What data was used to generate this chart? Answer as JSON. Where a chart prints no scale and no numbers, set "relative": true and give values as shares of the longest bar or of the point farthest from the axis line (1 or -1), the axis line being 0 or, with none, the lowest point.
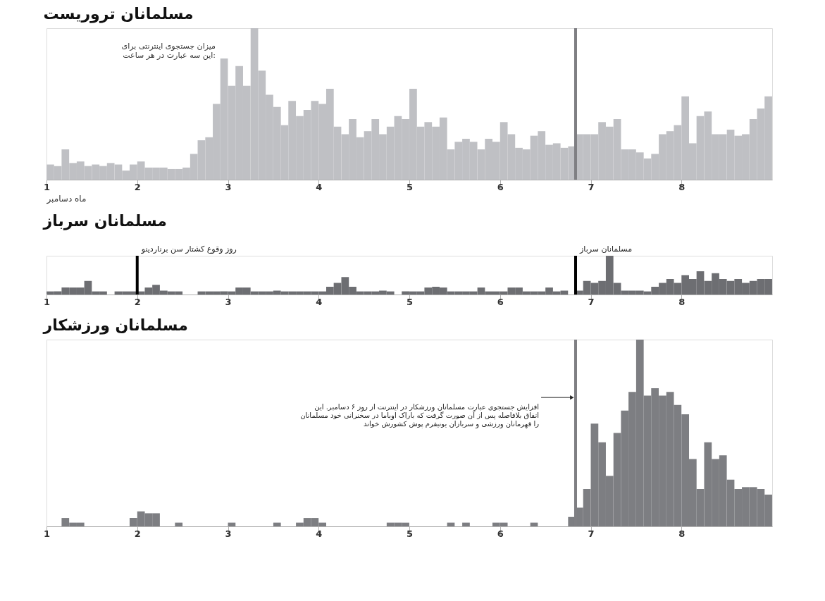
{
  "chart_data": [
    {
      "type": "bar",
      "title": "مسلمانان تروریست",
      "xlabel": "ماه دسامبر",
      "relative": true,
      "color": "#bfc0c4",
      "grid": false,
      "annotations": [
        "میزان جستجوی اینترنتی برای\nاین سه عبارت در هر ساعت:"
      ],
      "xlim": [
        1,
        9
      ],
      "xticks": [
        1,
        2,
        3,
        4,
        5,
        6,
        7,
        8
      ],
      "ref_lines": [
        {
          "axis": "x",
          "value": 6.833,
          "color": "#7f7f83"
        }
      ],
      "x": [
        1.042,
        1.125,
        1.208,
        1.292,
        1.375,
        1.458,
        1.542,
        1.625,
        1.708,
        1.792,
        1.875,
        1.958,
        2.042,
        2.125,
        2.208,
        2.292,
        2.375,
        2.458,
        2.542,
        2.625,
        2.708,
        2.792,
        2.875,
        2.958,
        3.042,
        3.125,
        3.208,
        3.292,
        3.375,
        3.458,
        3.542,
        3.625,
        3.708,
        3.792,
        3.875,
        3.958,
        4.042,
        4.125,
        4.208,
        4.292,
        4.375,
        4.458,
        4.542,
        4.625,
        4.708,
        4.792,
        4.875,
        4.958,
        5.042,
        5.125,
        5.208,
        5.292,
        5.375,
        5.458,
        5.542,
        5.625,
        5.708,
        5.792,
        5.875,
        5.958,
        6.042,
        6.125,
        6.208,
        6.292,
        6.375,
        6.458,
        6.542,
        6.625,
        6.708,
        6.792,
        6.875,
        6.958,
        7.042,
        7.125,
        7.208,
        7.292,
        7.375,
        7.458,
        7.542,
        7.625,
        7.708,
        7.792,
        7.875,
        7.958,
        8.042,
        8.125,
        8.208,
        8.292,
        8.375,
        8.458,
        8.542,
        8.625,
        8.708,
        8.792,
        8.875,
        8.958
      ],
      "values": [
        0.1,
        0.09,
        0.2,
        0.11,
        0.12,
        0.09,
        0.1,
        0.09,
        0.11,
        0.1,
        0.06,
        0.1,
        0.12,
        0.08,
        0.08,
        0.08,
        0.07,
        0.07,
        0.08,
        0.17,
        0.26,
        0.28,
        0.5,
        0.8,
        0.62,
        0.75,
        0.62,
        1.0,
        0.72,
        0.56,
        0.48,
        0.36,
        0.52,
        0.42,
        0.46,
        0.52,
        0.5,
        0.6,
        0.35,
        0.3,
        0.4,
        0.28,
        0.32,
        0.4,
        0.3,
        0.35,
        0.42,
        0.4,
        0.6,
        0.35,
        0.38,
        0.35,
        0.41,
        0.2,
        0.25,
        0.27,
        0.25,
        0.2,
        0.27,
        0.25,
        0.38,
        0.3,
        0.21,
        0.2,
        0.29,
        0.32,
        0.23,
        0.24,
        0.21,
        0.22,
        0.3,
        0.3,
        0.3,
        0.38,
        0.35,
        0.4,
        0.2,
        0.2,
        0.18,
        0.14,
        0.17,
        0.3,
        0.32,
        0.36,
        0.55,
        0.24,
        0.42,
        0.45,
        0.3,
        0.3,
        0.33,
        0.29,
        0.3,
        0.4,
        0.47,
        0.55
      ]
    },
    {
      "type": "bar",
      "title": "مسلمانان سرباز",
      "relative": true,
      "color": "#6d6e72",
      "grid": false,
      "xlim": [
        1,
        9
      ],
      "xticks": [
        1,
        2,
        3,
        4,
        5,
        6,
        7,
        8
      ],
      "ref_lines": [
        {
          "axis": "x",
          "value": 2,
          "label": "روز وقوع کشتار سن برناردینو",
          "color": "#000000"
        },
        {
          "axis": "x",
          "value": 6.833,
          "label": "مسلمانان سرباز",
          "color": "#000000"
        }
      ],
      "x": [
        1.042,
        1.125,
        1.208,
        1.292,
        1.375,
        1.458,
        1.542,
        1.625,
        1.708,
        1.792,
        1.875,
        1.958,
        2.042,
        2.125,
        2.208,
        2.292,
        2.375,
        2.458,
        2.542,
        2.625,
        2.708,
        2.792,
        2.875,
        2.958,
        3.042,
        3.125,
        3.208,
        3.292,
        3.375,
        3.458,
        3.542,
        3.625,
        3.708,
        3.792,
        3.875,
        3.958,
        4.042,
        4.125,
        4.208,
        4.292,
        4.375,
        4.458,
        4.542,
        4.625,
        4.708,
        4.792,
        4.875,
        4.958,
        5.042,
        5.125,
        5.208,
        5.292,
        5.375,
        5.458,
        5.542,
        5.625,
        5.708,
        5.792,
        5.875,
        5.958,
        6.042,
        6.125,
        6.208,
        6.292,
        6.375,
        6.458,
        6.542,
        6.625,
        6.708,
        6.792,
        6.875,
        6.958,
        7.042,
        7.125,
        7.208,
        7.292,
        7.375,
        7.458,
        7.542,
        7.625,
        7.708,
        7.792,
        7.875,
        7.958,
        8.042,
        8.125,
        8.208,
        8.292,
        8.375,
        8.458,
        8.542,
        8.625,
        8.708,
        8.792,
        8.875,
        8.958
      ],
      "values": [
        0.08,
        0.08,
        0.18,
        0.18,
        0.18,
        0.35,
        0.08,
        0.08,
        null,
        0.08,
        0.08,
        0.08,
        0.08,
        0.18,
        0.25,
        0.1,
        0.08,
        0.08,
        null,
        null,
        0.08,
        0.08,
        0.08,
        0.08,
        0.08,
        0.18,
        0.18,
        0.08,
        0.08,
        0.08,
        0.1,
        0.08,
        0.08,
        0.08,
        0.08,
        0.08,
        0.08,
        0.2,
        0.3,
        0.45,
        0.2,
        0.08,
        0.08,
        0.08,
        0.1,
        0.08,
        null,
        0.08,
        0.08,
        0.08,
        0.18,
        0.2,
        0.18,
        0.08,
        0.08,
        0.08,
        0.08,
        0.18,
        0.08,
        0.08,
        0.08,
        0.18,
        0.18,
        0.08,
        0.08,
        0.08,
        0.18,
        0.08,
        0.1,
        null,
        0.1,
        0.35,
        0.3,
        0.35,
        1.0,
        0.3,
        0.1,
        0.1,
        0.1,
        0.08,
        0.2,
        0.3,
        0.4,
        0.3,
        0.5,
        0.4,
        0.6,
        0.35,
        0.55,
        0.4,
        0.35,
        0.4,
        0.3,
        0.35,
        0.4,
        0.4
      ]
    },
    {
      "type": "bar",
      "title": "مسلمانان ورزشکار",
      "relative": true,
      "color": "#7d7e82",
      "grid": false,
      "annotations": [
        {
          "text": "افزایش جستجوی عبارت مسلمانان ورزشکار در اینترنت از روز ۶ دسامبر. این\nاتفاق بلافاصله پس از آن صورت گرفت که باراک اوباما در سخنرانی خود مسلمانان\nرا قهرمانان ورزشی و سربازان یونیفرم پوش کشورش خواند",
          "x": 6.833,
          "y": 0.69
        }
      ],
      "xlim": [
        1,
        9
      ],
      "xticks": [
        1,
        2,
        3,
        4,
        5,
        6,
        7,
        8
      ],
      "ref_lines": [
        {
          "axis": "x",
          "value": 6.833,
          "color": "#7f7f83"
        }
      ],
      "x": [
        1.208,
        1.292,
        1.375,
        1.458,
        1.542,
        1.625,
        1.708,
        1.792,
        1.875,
        1.958,
        2.042,
        2.125,
        2.208,
        2.292,
        2.375,
        2.458,
        2.542,
        2.625,
        2.708,
        2.792,
        2.875,
        2.958,
        3.042,
        3.125,
        3.208,
        3.292,
        3.375,
        3.458,
        3.542,
        3.625,
        3.708,
        3.792,
        3.875,
        3.958,
        4.042,
        4.125,
        4.208,
        4.292,
        4.375,
        4.458,
        4.542,
        4.625,
        4.708,
        4.792,
        4.875,
        4.958,
        5.042,
        5.125,
        5.208,
        5.292,
        5.375,
        5.458,
        5.542,
        5.625,
        5.708,
        5.792,
        5.875,
        5.958,
        6.042,
        6.125,
        6.208,
        6.292,
        6.375,
        6.458,
        6.542,
        6.625,
        6.708,
        6.792,
        6.875,
        6.958,
        7.042,
        7.125,
        7.208,
        7.292,
        7.375,
        7.458,
        7.542,
        7.625,
        7.708,
        7.792,
        7.875,
        7.958,
        8.042,
        8.125,
        8.208,
        8.292,
        8.375,
        8.458,
        8.542,
        8.625,
        8.708,
        8.792,
        8.875,
        8.958
      ],
      "values": [
        0.045,
        0.02,
        0.02,
        null,
        null,
        null,
        null,
        null,
        null,
        0.045,
        0.08,
        0.07,
        0.07,
        null,
        null,
        0.02,
        null,
        null,
        null,
        null,
        null,
        null,
        0.02,
        null,
        null,
        null,
        null,
        null,
        0.02,
        null,
        null,
        0.02,
        0.045,
        0.045,
        0.02,
        null,
        null,
        null,
        null,
        null,
        null,
        null,
        null,
        0.02,
        0.02,
        0.02,
        null,
        null,
        null,
        null,
        null,
        0.02,
        null,
        0.02,
        null,
        null,
        null,
        0.02,
        0.02,
        null,
        null,
        null,
        0.02,
        null,
        null,
        null,
        null,
        0.05,
        0.1,
        0.2,
        0.55,
        0.45,
        0.27,
        0.5,
        0.62,
        0.72,
        1.0,
        0.7,
        0.74,
        0.7,
        0.72,
        0.65,
        0.6,
        0.36,
        0.2,
        0.45,
        0.36,
        0.38,
        0.25,
        0.2,
        0.21,
        0.21,
        0.2,
        0.17
      ]
    }
  ]
}
